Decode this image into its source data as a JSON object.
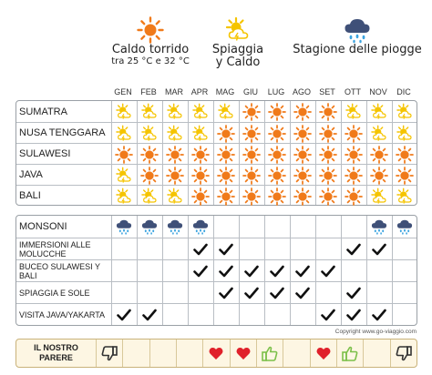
{
  "legend": {
    "hot": {
      "icon": "sun-icon",
      "title": "Caldo torrido",
      "subtitle": "tra 25 °C e 32 °C"
    },
    "beach": {
      "icon": "sun-cloud-icon",
      "title": "Spiaggia",
      "subtitle": "y Caldo"
    },
    "rain": {
      "icon": "rain-cloud-icon",
      "title": "Stagione delle piogge"
    }
  },
  "months": [
    "GEN",
    "FEB",
    "MAR",
    "APR",
    "MAG",
    "GIU",
    "LUG",
    "AGO",
    "SET",
    "OTT",
    "NOV",
    "DIC"
  ],
  "climate": [
    {
      "name": "SUMATRA",
      "icons": [
        "sun-cloud",
        "sun-cloud",
        "sun-cloud",
        "sun-cloud",
        "sun-cloud",
        "sun",
        "sun",
        "sun",
        "sun",
        "sun-cloud",
        "sun-cloud",
        "sun-cloud"
      ]
    },
    {
      "name": "NUSA TENGGARA",
      "icons": [
        "sun-cloud",
        "sun-cloud",
        "sun-cloud",
        "sun-cloud",
        "sun",
        "sun",
        "sun",
        "sun",
        "sun",
        "sun",
        "sun-cloud",
        "sun-cloud"
      ]
    },
    {
      "name": "SULAWESI",
      "icons": [
        "sun",
        "sun",
        "sun",
        "sun",
        "sun",
        "sun",
        "sun",
        "sun",
        "sun",
        "sun",
        "sun",
        "sun"
      ]
    },
    {
      "name": "JAVA",
      "icons": [
        "sun-cloud",
        "sun",
        "sun",
        "sun",
        "sun",
        "sun",
        "sun",
        "sun",
        "sun",
        "sun",
        "sun",
        "sun"
      ]
    },
    {
      "name": "BALI",
      "icons": [
        "sun-cloud",
        "sun-cloud",
        "sun-cloud",
        "sun",
        "sun",
        "sun",
        "sun",
        "sun",
        "sun",
        "sun",
        "sun-cloud",
        "sun-cloud"
      ]
    }
  ],
  "activities": [
    {
      "name": "MONSONI",
      "marks": [
        "rain",
        "rain",
        "rain",
        "rain",
        "",
        "",
        "",
        "",
        "",
        "",
        "rain",
        "rain"
      ]
    },
    {
      "name": "IMMERSIONI ALLE MOLUCCHE",
      "marks": [
        "",
        "",
        "",
        "check",
        "check",
        "",
        "",
        "",
        "",
        "check",
        "check",
        ""
      ]
    },
    {
      "name": "BUCEO SULAWESI Y BALI",
      "marks": [
        "",
        "",
        "",
        "check",
        "check",
        "check",
        "check",
        "check",
        "check",
        "",
        "",
        ""
      ]
    },
    {
      "name": "SPIAGGIA E SOLE",
      "marks": [
        "",
        "",
        "",
        "",
        "check",
        "check",
        "check",
        "check",
        "",
        "check",
        "",
        ""
      ]
    },
    {
      "name": "VISITA JAVA/YAKARTA",
      "marks": [
        "check",
        "check",
        "",
        "",
        "",
        "",
        "",
        "",
        "check",
        "check",
        "check",
        ""
      ]
    }
  ],
  "copyright": "Copyright www.go-viaggio.com",
  "verdict": {
    "label": "IL NOSTRO PARERE",
    "marks": [
      "thumbs-down",
      "",
      "",
      "",
      "heart",
      "heart",
      "thumbs-up",
      "",
      "heart",
      "thumbs-up",
      "",
      "thumbs-down"
    ]
  },
  "colors": {
    "sun": "#f07a1a",
    "beach_sun": "#f5c400",
    "rain_cloud": "#3f5078",
    "rain_drop": "#3aa3e0",
    "check": "#111111",
    "heart": "#e0212b",
    "thumb_up": "#7cc04a",
    "thumb_down": "#333333",
    "grid": "#b9bec4",
    "verdict_bg": "#fdf6e3"
  }
}
